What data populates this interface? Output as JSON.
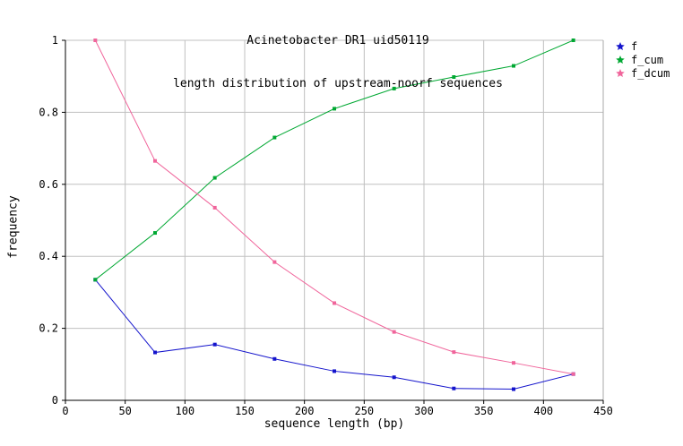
{
  "title": {
    "line1": "Acinetobacter DR1 uid50119",
    "line2": "length distribution of upstream-noorf sequences"
  },
  "chart_data": {
    "type": "line",
    "x": [
      25,
      75,
      125,
      175,
      225,
      275,
      325,
      375,
      425
    ],
    "series": [
      {
        "name": "f",
        "color": "#1414cc",
        "marker": "square",
        "values": [
          0.335,
          0.133,
          0.155,
          0.115,
          0.081,
          0.064,
          0.033,
          0.031,
          0.073
        ]
      },
      {
        "name": "f_cum",
        "color": "#00a832",
        "marker": "square",
        "values": [
          0.335,
          0.465,
          0.618,
          0.73,
          0.81,
          0.866,
          0.898,
          0.929,
          1.0
        ]
      },
      {
        "name": "f_dcum",
        "color": "#f0659b",
        "marker": "square",
        "values": [
          1.0,
          0.665,
          0.535,
          0.384,
          0.27,
          0.19,
          0.134,
          0.104,
          0.073
        ]
      }
    ],
    "title": "Acinetobacter DR1 uid50119 — length distribution of upstream-noorf sequences",
    "xlabel": "sequence length (bp)",
    "ylabel": "frequency",
    "xlim": [
      0,
      450
    ],
    "ylim": [
      0,
      1
    ],
    "x_ticks": [
      0,
      50,
      100,
      150,
      200,
      250,
      300,
      350,
      400,
      450
    ],
    "y_ticks": [
      0,
      0.2,
      0.4,
      0.6,
      0.8,
      1
    ],
    "grid": true,
    "legend_position": "top-right-outside",
    "legend_marker": "star-icon",
    "colors": {
      "background": "#ffffff",
      "grid": "#c0c0c0",
      "axis": "#000000",
      "border": "#a8a8a8"
    }
  }
}
